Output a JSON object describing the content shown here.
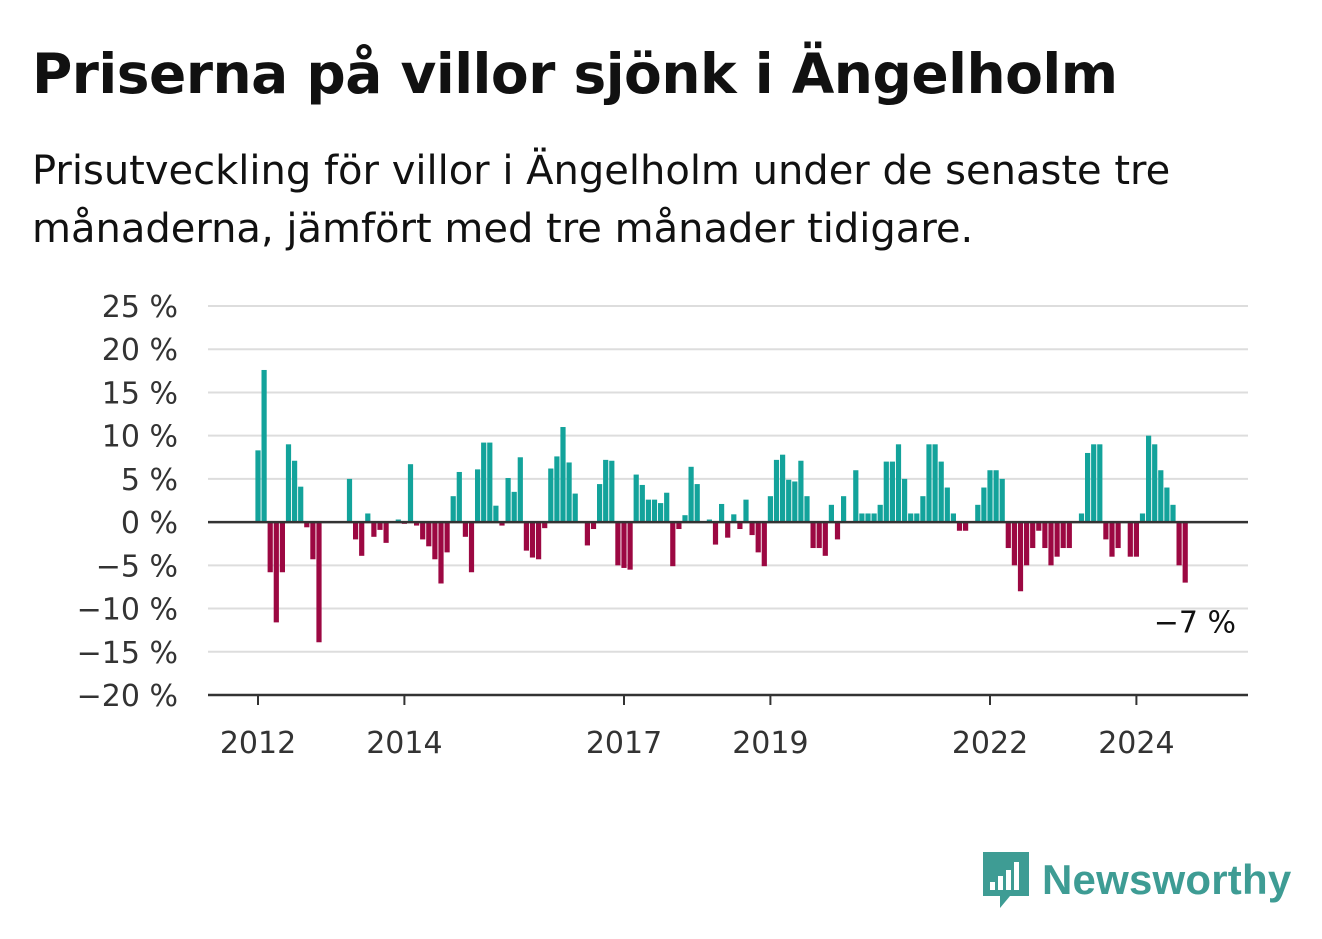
{
  "title": "Priserna på villor sjönk i Ängelholm",
  "subtitle": "Prisutveckling för villor i Ängelholm under de senaste tre månaderna, jämfört med tre månader tidigare.",
  "brand": {
    "name": "Newsworthy",
    "color": "#3e9c94",
    "icon": "bar-chart-speech-bubble-icon"
  },
  "colors": {
    "positive": "#13a39b",
    "negative": "#9c0842",
    "grid": "#dddddd",
    "axis": "#333333"
  },
  "chart_data": {
    "type": "bar",
    "title": "Priserna på villor sjönk i Ängelholm",
    "subtitle": "Prisutveckling för villor i Ängelholm under de senaste tre månaderna, jämfört med tre månader tidigare.",
    "y_unit": "%",
    "ylim": [
      -20,
      25
    ],
    "y_ticks": [
      25,
      20,
      15,
      10,
      5,
      0,
      -5,
      -10,
      -15,
      -20
    ],
    "y_tick_labels": [
      "25 %",
      "20 %",
      "15 %",
      "10 %",
      "5 %",
      "0 %",
      "−5 %",
      "−10 %",
      "−15 %",
      "−20 %"
    ],
    "x_tick_labels": [
      {
        "label": "2012",
        "date": "2012-01"
      },
      {
        "label": "2014",
        "date": "2014-01"
      },
      {
        "label": "2017",
        "date": "2017-01"
      },
      {
        "label": "2019",
        "date": "2019-01"
      },
      {
        "label": "2022",
        "date": "2022-01"
      },
      {
        "label": "2024",
        "date": "2024-01"
      }
    ],
    "grid": true,
    "last_value_label": "−7 %",
    "x": [
      "2012-01",
      "2012-02",
      "2012-03",
      "2012-04",
      "2012-05",
      "2012-06",
      "2012-07",
      "2012-08",
      "2012-09",
      "2012-10",
      "2012-11",
      "2012-12",
      "2013-01",
      "2013-02",
      "2013-03",
      "2013-04",
      "2013-05",
      "2013-06",
      "2013-07",
      "2013-08",
      "2013-09",
      "2013-10",
      "2013-11",
      "2013-12",
      "2014-01",
      "2014-02",
      "2014-03",
      "2014-04",
      "2014-05",
      "2014-06",
      "2014-07",
      "2014-08",
      "2014-09",
      "2014-10",
      "2014-11",
      "2014-12",
      "2015-01",
      "2015-02",
      "2015-03",
      "2015-04",
      "2015-05",
      "2015-06",
      "2015-07",
      "2015-08",
      "2015-09",
      "2015-10",
      "2015-11",
      "2015-12",
      "2016-01",
      "2016-02",
      "2016-03",
      "2016-04",
      "2016-05",
      "2016-06",
      "2016-07",
      "2016-08",
      "2016-09",
      "2016-10",
      "2016-11",
      "2016-12",
      "2017-01",
      "2017-02",
      "2017-03",
      "2017-04",
      "2017-05",
      "2017-06",
      "2017-07",
      "2017-08",
      "2017-09",
      "2017-10",
      "2017-11",
      "2017-12",
      "2018-01",
      "2018-02",
      "2018-03",
      "2018-04",
      "2018-05",
      "2018-06",
      "2018-07",
      "2018-08",
      "2018-09",
      "2018-10",
      "2018-11",
      "2018-12",
      "2019-01",
      "2019-02",
      "2019-03",
      "2019-04",
      "2019-05",
      "2019-06",
      "2019-07",
      "2019-08",
      "2019-09",
      "2019-10",
      "2019-11",
      "2019-12",
      "2020-01",
      "2020-02",
      "2020-03",
      "2020-04",
      "2020-05",
      "2020-06",
      "2020-07",
      "2020-08",
      "2020-09",
      "2020-10",
      "2020-11",
      "2020-12",
      "2021-01",
      "2021-02",
      "2021-03",
      "2021-04",
      "2021-05",
      "2021-06",
      "2021-07",
      "2021-08",
      "2021-09",
      "2021-10",
      "2021-11",
      "2021-12",
      "2022-01",
      "2022-02",
      "2022-03",
      "2022-04",
      "2022-05",
      "2022-06",
      "2022-07",
      "2022-08",
      "2022-09",
      "2022-10",
      "2022-11",
      "2022-12",
      "2023-01",
      "2023-02",
      "2023-03",
      "2023-04",
      "2023-05",
      "2023-06",
      "2023-07",
      "2023-08",
      "2023-09",
      "2023-10",
      "2023-11",
      "2023-12",
      "2024-01",
      "2024-02",
      "2024-03",
      "2024-04",
      "2024-05",
      "2024-06",
      "2024-07",
      "2024-08",
      "2024-09"
    ],
    "values": [
      8.3,
      17.6,
      -5.8,
      -11.6,
      -5.8,
      9.0,
      7.1,
      4.1,
      -0.6,
      -4.3,
      -13.9,
      null,
      null,
      null,
      null,
      5.0,
      -2.0,
      -3.9,
      1.0,
      -1.7,
      -0.9,
      -2.4,
      null,
      0.3,
      -0.2,
      6.7,
      -0.4,
      -2.0,
      -2.8,
      -4.3,
      -7.1,
      -3.5,
      3.0,
      5.8,
      -1.7,
      -5.8,
      6.1,
      9.2,
      9.2,
      1.9,
      -0.4,
      5.1,
      3.5,
      7.5,
      -3.3,
      -4.1,
      -4.3,
      -0.7,
      6.2,
      7.6,
      11.0,
      6.9,
      3.3,
      null,
      -2.7,
      -0.8,
      4.4,
      7.2,
      7.1,
      -5.0,
      -5.3,
      -5.5,
      5.5,
      4.3,
      2.6,
      2.6,
      2.2,
      3.4,
      -5.1,
      -0.8,
      0.8,
      6.4,
      4.4,
      null,
      0.3,
      -2.6,
      2.1,
      -1.8,
      0.9,
      -0.8,
      2.6,
      -1.5,
      -3.5,
      -5.1,
      3.0,
      7.2,
      7.8,
      4.9,
      4.7,
      7.1,
      3.0,
      -3.0,
      -3.0,
      -3.9,
      2.0,
      -2.0,
      3.0,
      null,
      6.0,
      1.0,
      1.0,
      1.0,
      2.0,
      7.0,
      7.0,
      9.0,
      5.0,
      1.0,
      1.0,
      3.0,
      9.0,
      9.0,
      7.0,
      4.0,
      1.0,
      -1.0,
      -1.0,
      null,
      2.0,
      4.0,
      6.0,
      6.0,
      5.0,
      -3.0,
      -5.0,
      -8.0,
      -5.0,
      -3.0,
      -1.0,
      -3.0,
      -5.0,
      -4.0,
      -3.0,
      -3.0,
      null,
      1.0,
      8.0,
      9.0,
      9.0,
      -2.0,
      -4.0,
      -3.0,
      null,
      -4.0,
      -4.0,
      1.0,
      10.0,
      9.0,
      6.0,
      4.0,
      2.0,
      -5.0,
      -7.0
    ]
  }
}
